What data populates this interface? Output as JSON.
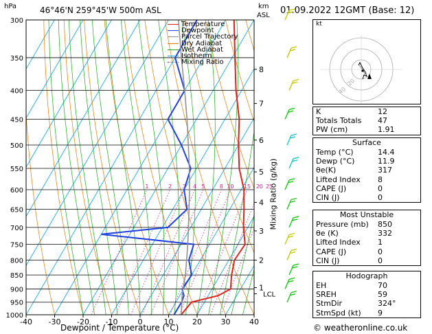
{
  "header": {
    "hpa_unit": "hPa",
    "location": "46°46'N  259°45'W  500m  ASL",
    "km_unit": "km",
    "asl_unit": "ASL",
    "datetime": "01.09.2022  12GMT  (Base: 12)"
  },
  "legend": [
    {
      "label": "Temperature",
      "color": "#e0201e",
      "style": "solid"
    },
    {
      "label": "Dewpoint",
      "color": "#1f3fe0",
      "style": "solid"
    },
    {
      "label": "Parcel Trajectory",
      "color": "#909090",
      "style": "solid"
    },
    {
      "label": "Dry Adiabat",
      "color": "#e07800",
      "style": "solid"
    },
    {
      "label": "Wet Adiabat",
      "color": "#18a818",
      "style": "solid"
    },
    {
      "label": "Isotherm",
      "color": "#00a0e0",
      "style": "solid"
    },
    {
      "label": "Mixing Ratio",
      "color": "#d0208c",
      "style": "dotted"
    }
  ],
  "chart_data": {
    "type": "line",
    "title": "",
    "xlabel": "Dewpoint / Temperature (°C)",
    "ylabel": "hPa",
    "x_ticks": [
      "-40",
      "-30",
      "-20",
      "-10",
      "0",
      "10",
      "20",
      "30",
      "40"
    ],
    "pressure_ticks": [
      "300",
      "350",
      "400",
      "450",
      "500",
      "550",
      "600",
      "650",
      "700",
      "750",
      "800",
      "850",
      "900",
      "950",
      "1000"
    ],
    "xlim": [
      -40,
      40
    ],
    "ylim_hpa": [
      1000,
      300
    ],
    "y_scale": "log",
    "skew": true,
    "km_ticks": [
      {
        "label": "8",
        "hpa": 367
      },
      {
        "label": "7",
        "hpa": 422
      },
      {
        "label": "6",
        "hpa": 490
      },
      {
        "label": "5",
        "hpa": 558
      },
      {
        "label": "4",
        "hpa": 632
      },
      {
        "label": "3",
        "hpa": 710
      },
      {
        "label": "2",
        "hpa": 800
      },
      {
        "label": "1",
        "hpa": 895
      }
    ],
    "lcl": {
      "label": "LCL",
      "hpa": 918
    },
    "mixing_ratio_labels": [
      "1",
      "2",
      "3",
      "4",
      "5",
      "8",
      "10",
      "15",
      "20",
      "25"
    ],
    "mixing_ratio_axis_label": "Mixing Ratio (g/kg)",
    "series": [
      {
        "name": "Temperature",
        "color": "#e0201e",
        "points": [
          [
            1000,
            14.4
          ],
          [
            950,
            15.5
          ],
          [
            925,
            23.5
          ],
          [
            900,
            26.5
          ],
          [
            850,
            24.0
          ],
          [
            800,
            22.0
          ],
          [
            750,
            22.5
          ],
          [
            700,
            18.5
          ],
          [
            650,
            15.0
          ],
          [
            600,
            11.0
          ],
          [
            550,
            5.0
          ],
          [
            500,
            0.0
          ],
          [
            450,
            -5.0
          ],
          [
            400,
            -12.0
          ],
          [
            350,
            -19.0
          ],
          [
            300,
            -27.0
          ]
        ]
      },
      {
        "name": "Dewpoint",
        "color": "#1f3fe0",
        "points": [
          [
            1000,
            11.9
          ],
          [
            950,
            12.0
          ],
          [
            925,
            11.5
          ],
          [
            900,
            9.5
          ],
          [
            850,
            10.0
          ],
          [
            800,
            6.0
          ],
          [
            750,
            4.5
          ],
          [
            720,
            -30.0
          ],
          [
            700,
            -8.0
          ],
          [
            650,
            -5.0
          ],
          [
            600,
            -10.0
          ],
          [
            550,
            -12.0
          ],
          [
            500,
            -20.0
          ],
          [
            450,
            -30.0
          ],
          [
            400,
            -30.0
          ],
          [
            350,
            -40.0
          ],
          [
            300,
            -40.0
          ]
        ]
      },
      {
        "name": "Parcel Trajectory",
        "color": "#909090",
        "points": [
          [
            1000,
            14.4
          ],
          [
            918,
            10.5
          ],
          [
            850,
            7.8
          ],
          [
            800,
            5.2
          ],
          [
            750,
            2.4
          ],
          [
            700,
            -0.8
          ],
          [
            650,
            -4.3
          ],
          [
            600,
            -8.1
          ],
          [
            550,
            -12.5
          ],
          [
            500,
            -17.6
          ],
          [
            450,
            -23.3
          ],
          [
            400,
            -30.0
          ],
          [
            350,
            -37.8
          ],
          [
            300,
            -46.5
          ]
        ]
      }
    ],
    "winds": [
      {
        "hpa": 300,
        "color": "#c8c800"
      },
      {
        "hpa": 350,
        "color": "#c8c800"
      },
      {
        "hpa": 400,
        "color": "#c8c800"
      },
      {
        "hpa": 450,
        "color": "#18c818"
      },
      {
        "hpa": 500,
        "color": "#18c8c8"
      },
      {
        "hpa": 550,
        "color": "#18c8c8"
      },
      {
        "hpa": 600,
        "color": "#18c818"
      },
      {
        "hpa": 650,
        "color": "#18c818"
      },
      {
        "hpa": 700,
        "color": "#18c818"
      },
      {
        "hpa": 750,
        "color": "#c8c800"
      },
      {
        "hpa": 800,
        "color": "#c8c800"
      },
      {
        "hpa": 850,
        "color": "#18c818"
      },
      {
        "hpa": 900,
        "color": "#18c818"
      },
      {
        "hpa": 950,
        "color": "#18c818"
      }
    ]
  },
  "hodograph": {
    "unit_label": "kt",
    "ring_labels": [
      "20",
      "40"
    ]
  },
  "indices": {
    "rows": [
      {
        "label": "K",
        "value": "12"
      },
      {
        "label": "Totals Totals",
        "value": "47"
      },
      {
        "label": "PW (cm)",
        "value": "1.91"
      }
    ]
  },
  "surface": {
    "title": "Surface",
    "rows": [
      {
        "label": "Temp (°C)",
        "value": "14.4"
      },
      {
        "label": "Dewp (°C)",
        "value": "11.9"
      },
      {
        "label": "θe(K)",
        "value": "317"
      },
      {
        "label": "Lifted Index",
        "value": "8"
      },
      {
        "label": "CAPE (J)",
        "value": "0"
      },
      {
        "label": "CIN (J)",
        "value": "0"
      }
    ]
  },
  "most_unstable": {
    "title": "Most Unstable",
    "rows": [
      {
        "label": "Pressure (mb)",
        "value": "850"
      },
      {
        "label": "θe (K)",
        "value": "332"
      },
      {
        "label": "Lifted Index",
        "value": "1"
      },
      {
        "label": "CAPE (J)",
        "value": "0"
      },
      {
        "label": "CIN (J)",
        "value": "0"
      }
    ]
  },
  "hodograph_table": {
    "title": "Hodograph",
    "rows": [
      {
        "label": "EH",
        "value": "70"
      },
      {
        "label": "SREH",
        "value": "59"
      },
      {
        "label": "StmDir",
        "value": "324°"
      },
      {
        "label": "StmSpd (kt)",
        "value": "9"
      }
    ]
  },
  "footer": {
    "copyright": "© weatheronline.co.uk"
  }
}
